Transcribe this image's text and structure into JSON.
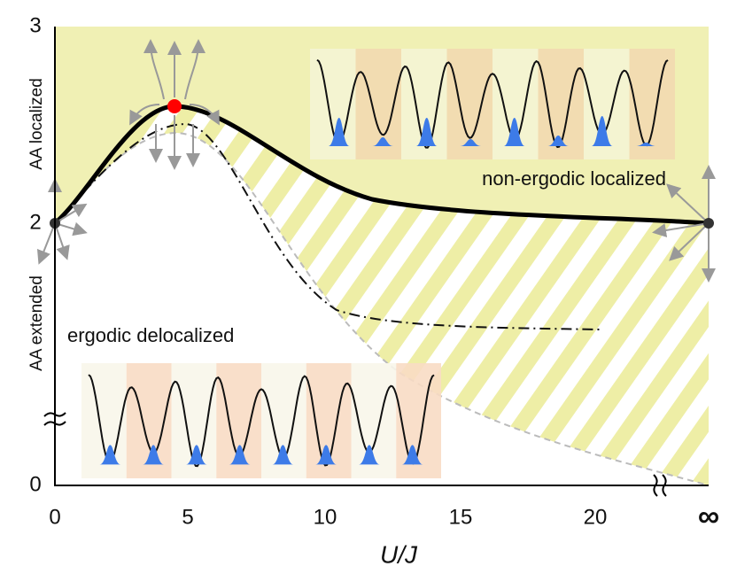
{
  "axes": {
    "x_label": "U/J",
    "x_ticks": [
      "0",
      "5",
      "10",
      "15",
      "20",
      "∞"
    ],
    "y_ticks": [
      "0",
      "2",
      "3"
    ],
    "y_labels": [
      "AA localized",
      "AA extended"
    ]
  },
  "regions": [
    "non-ergodic localized",
    "ergodic delocalized"
  ]
}
